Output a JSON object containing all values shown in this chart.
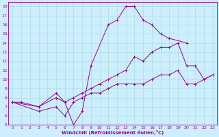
{
  "xlabel": "Windchill (Refroidissement éolien,°C)",
  "bg_color": "#cceeff",
  "line_color": "#990099",
  "grid_color": "#aadddd",
  "xlim": [
    -0.5,
    23.5
  ],
  "ylim": [
    5,
    18.5
  ],
  "xticks": [
    0,
    1,
    2,
    3,
    4,
    5,
    6,
    7,
    8,
    9,
    10,
    11,
    12,
    13,
    14,
    15,
    16,
    17,
    18,
    19,
    20,
    21,
    22,
    23
  ],
  "yticks": [
    5,
    6,
    7,
    8,
    9,
    10,
    11,
    12,
    13,
    14,
    15,
    16,
    17,
    18
  ],
  "series": [
    {
      "x": [
        0,
        1,
        3,
        5,
        6,
        7,
        8,
        9,
        11,
        12,
        13,
        14,
        15,
        16,
        17,
        18,
        20
      ],
      "y": [
        7.5,
        7.5,
        7.0,
        8.5,
        7.5,
        5.0,
        6.5,
        11.5,
        16.0,
        16.5,
        18.0,
        18.0,
        16.5,
        16.0,
        15.0,
        14.5,
        14.0
      ]
    },
    {
      "x": [
        0,
        3,
        5,
        6,
        7,
        8,
        9,
        10,
        11,
        12,
        13,
        14,
        15,
        16,
        17,
        18,
        19,
        20,
        21,
        22,
        23
      ],
      "y": [
        7.5,
        7.0,
        8.0,
        7.5,
        8.0,
        8.5,
        9.0,
        9.5,
        10.0,
        10.5,
        11.0,
        12.5,
        12.0,
        13.0,
        13.5,
        13.5,
        14.0,
        11.5,
        11.5,
        10.0,
        10.5
      ]
    },
    {
      "x": [
        0,
        3,
        5,
        6,
        7,
        8,
        9,
        10,
        11,
        12,
        13,
        14,
        15,
        16,
        17,
        18,
        19,
        20,
        21,
        22,
        23
      ],
      "y": [
        7.5,
        6.5,
        7.0,
        6.0,
        7.5,
        8.0,
        8.5,
        8.5,
        9.0,
        9.5,
        9.5,
        9.5,
        9.5,
        10.0,
        10.5,
        10.5,
        11.0,
        9.5,
        9.5,
        10.0,
        10.5
      ]
    }
  ]
}
